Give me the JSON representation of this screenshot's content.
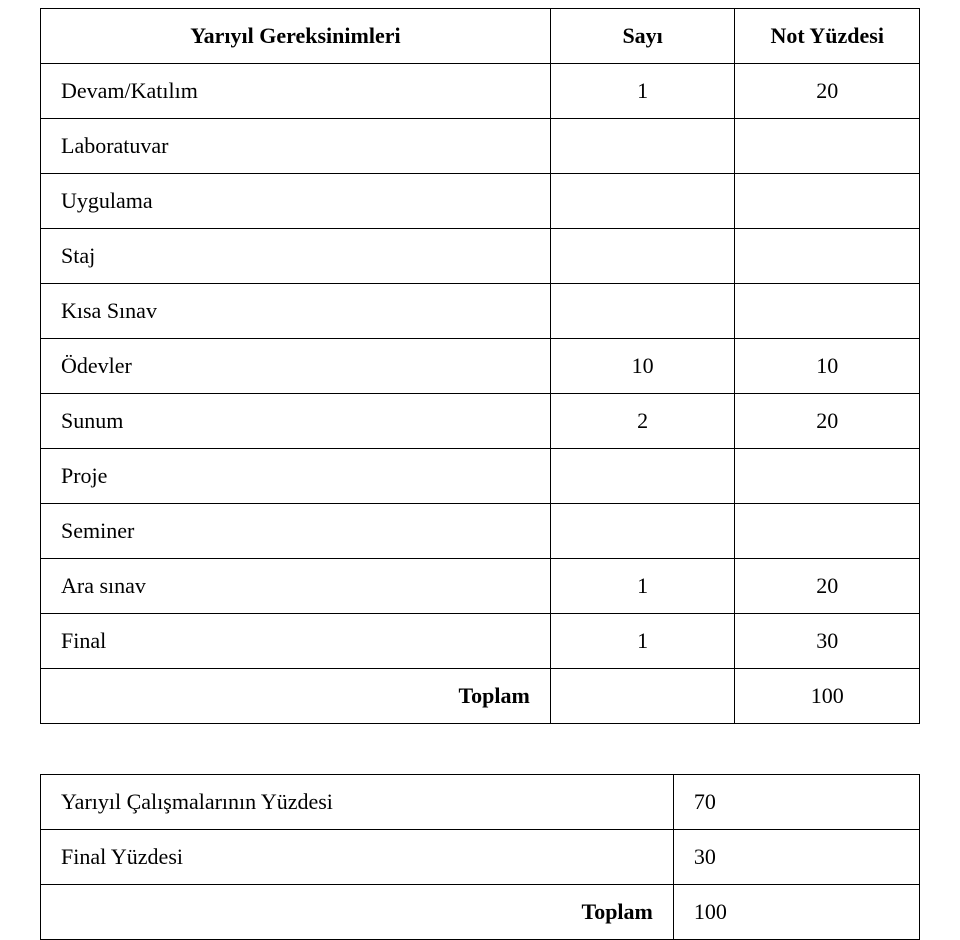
{
  "top_table": {
    "headers": {
      "label": "Yarıyıl Gereksinimleri",
      "count": "Sayı",
      "percent": "Not Yüzdesi"
    },
    "rows": [
      {
        "label": "Devam/Katılım",
        "count": "1",
        "percent": "20"
      },
      {
        "label": "Laboratuvar",
        "count": "",
        "percent": ""
      },
      {
        "label": "Uygulama",
        "count": "",
        "percent": ""
      },
      {
        "label": "Staj",
        "count": "",
        "percent": ""
      },
      {
        "label": "Kısa Sınav",
        "count": "",
        "percent": ""
      },
      {
        "label": "Ödevler",
        "count": "10",
        "percent": "10"
      },
      {
        "label": "Sunum",
        "count": "2",
        "percent": "20"
      },
      {
        "label": "Proje",
        "count": "",
        "percent": ""
      },
      {
        "label": "Seminer",
        "count": "",
        "percent": ""
      },
      {
        "label": "Ara sınav",
        "count": "1",
        "percent": "20"
      },
      {
        "label": "Final",
        "count": "1",
        "percent": "30"
      }
    ],
    "total_label": "Toplam",
    "total_value": "100"
  },
  "bottom_table": {
    "rows": [
      {
        "label": "Yarıyıl Çalışmalarının Yüzdesi",
        "value": "70"
      },
      {
        "label": "Final Yüzdesi",
        "value": "30"
      }
    ],
    "total_label": "Toplam",
    "total_value": "100"
  }
}
